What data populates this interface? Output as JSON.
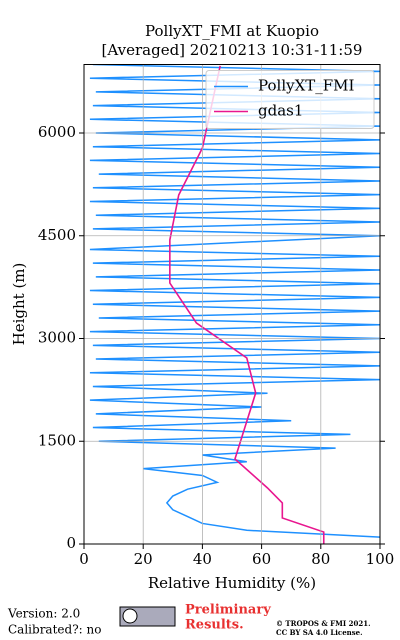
{
  "chart_data": {
    "type": "line",
    "title": [
      "PollyXT_FMI at Kuopio",
      "[Averaged] 20210213 10:31-11:59"
    ],
    "xlabel": "Relative Humidity (%)",
    "ylabel": "Height (m)",
    "xlim": [
      0,
      100
    ],
    "xticks": [
      0,
      20,
      40,
      60,
      80,
      100
    ],
    "ylim": [
      0,
      7000
    ],
    "yticks": [
      0,
      1500,
      3000,
      4500,
      6000
    ],
    "grid": true,
    "legend": "upper right",
    "series": [
      {
        "name": "PollyXT_FMI",
        "color": "#1e90ff",
        "y": [
          100,
          200,
          300,
          400,
          500,
          600,
          700,
          800,
          900,
          1000,
          1100,
          1200,
          1300,
          1400,
          1500,
          1600,
          1700,
          1800,
          1900,
          2000,
          2100,
          2200,
          2300,
          2400,
          2500,
          2600,
          2700,
          2800,
          2900,
          3000,
          3100,
          3200,
          3300,
          3400,
          3500,
          3600,
          3700,
          3800,
          3900,
          4000,
          4100,
          4200,
          4300,
          4500,
          4600,
          4700,
          4800,
          4900,
          5000,
          5100,
          5200,
          5300,
          5400,
          5500,
          5600,
          5700,
          5800,
          5900,
          6000,
          6100,
          6200,
          6300,
          6400,
          6500,
          6600,
          6700,
          6800,
          6900,
          7000
        ],
        "values": [
          100,
          55,
          40,
          35,
          30,
          28,
          30,
          35,
          45,
          40,
          20,
          55,
          40,
          85,
          5,
          90,
          3,
          70,
          4,
          60,
          2,
          62,
          3,
          100,
          2,
          100,
          4,
          100,
          3,
          100,
          2,
          100,
          5,
          100,
          3,
          100,
          2,
          100,
          4,
          100,
          3,
          100,
          2,
          100,
          3,
          100,
          4,
          100,
          2,
          100,
          3,
          100,
          5,
          100,
          2,
          100,
          3,
          100,
          4,
          100,
          2,
          100,
          3,
          100,
          4,
          100,
          2,
          100,
          3
        ]
      },
      {
        "name": "gdas1",
        "color": "#e8168f",
        "y": [
          0,
          175,
          380,
          599,
          818,
          1241,
          2204,
          2715,
          3226,
          3810,
          4438,
          5095,
          5781,
          6980
        ],
        "values": [
          81,
          81,
          67,
          67,
          62,
          51,
          58,
          55,
          38,
          29,
          29,
          32,
          40,
          46
        ]
      }
    ]
  },
  "footer": {
    "version": "Version: 2.0",
    "calibrated": "Calibrated?: no",
    "preliminary": "Preliminary",
    "results": "Results.",
    "copyright": "© TROPOS & FMI 2021.",
    "license": "CC BY SA 4.0 License."
  }
}
